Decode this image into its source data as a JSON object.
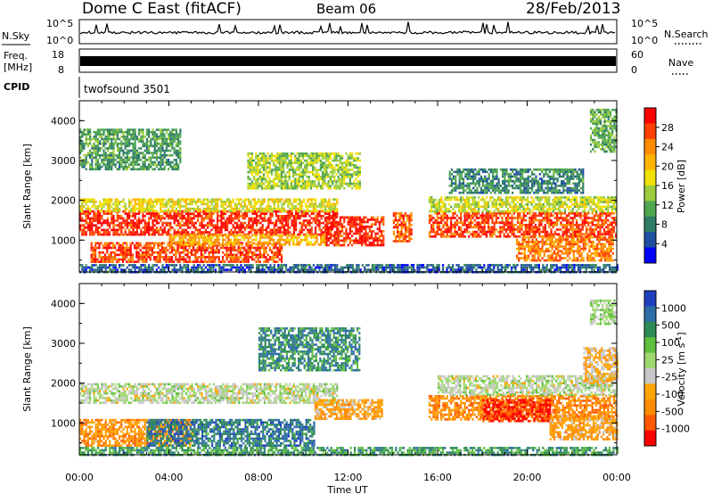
{
  "header": {
    "station": "Dome C East (fitACF)",
    "beam": "Beam 06",
    "date": "28/Feb/2013"
  },
  "noise_panel": {
    "left_label": "N.Sky",
    "right_label": "N.Search",
    "tick_top": "10^5",
    "tick_bottom": "10^0"
  },
  "freq_panel": {
    "left_label_top": "Freq.",
    "left_label_unit": "[MHz]",
    "left_tick_top": "18",
    "left_tick_bottom": "8",
    "right_label": "Nave",
    "right_tick_top": "60",
    "right_tick_bottom": "0"
  },
  "cpid_panel": {
    "label": "CPID",
    "value": "twofsound 3501"
  },
  "chart_data": [
    {
      "type": "heatmap",
      "name": "Power",
      "ylabel": "Slant Range [km]",
      "xlabel": "Time UT",
      "ylim": [
        200,
        4500
      ],
      "yticks": [
        "1000",
        "2000",
        "3000",
        "4000"
      ],
      "xticks": [
        "00:00",
        "04:00",
        "08:00",
        "12:00",
        "16:00",
        "20:00",
        "00:00"
      ],
      "colorbar": {
        "label": "Power [dB]",
        "ticks": [
          "28",
          "24",
          "20",
          "16",
          "12",
          "8",
          "4"
        ],
        "colors": [
          "#ff0000",
          "#ff4000",
          "#ff8c00",
          "#ffb400",
          "#f0e000",
          "#9ccc3c",
          "#4fa64f",
          "#2e7d64",
          "#1e4fa0",
          "#0000ff"
        ]
      },
      "regions": [
        {
          "t0": 0.0,
          "t1": 11.5,
          "r0": 1150,
          "r1": 1750,
          "level": 0.95
        },
        {
          "t0": 0.0,
          "t1": 11.5,
          "r0": 1750,
          "r1": 2050,
          "level": 0.55
        },
        {
          "t0": 0.5,
          "t1": 9.0,
          "r0": 450,
          "r1": 950,
          "level": 0.9
        },
        {
          "t0": 4.0,
          "t1": 11.0,
          "r0": 900,
          "r1": 1150,
          "level": 0.7
        },
        {
          "t0": 7.5,
          "t1": 12.5,
          "r0": 2300,
          "r1": 3200,
          "level": 0.45
        },
        {
          "t0": 11.0,
          "t1": 13.6,
          "r0": 900,
          "r1": 1600,
          "level": 0.95
        },
        {
          "t0": 14.0,
          "t1": 14.8,
          "r0": 1000,
          "r1": 1700,
          "level": 0.85
        },
        {
          "t0": 15.6,
          "t1": 24.0,
          "r0": 1100,
          "r1": 1700,
          "level": 0.9
        },
        {
          "t0": 15.6,
          "t1": 24.0,
          "r0": 1700,
          "r1": 2100,
          "level": 0.5
        },
        {
          "t0": 19.5,
          "t1": 23.8,
          "r0": 500,
          "r1": 1100,
          "level": 0.8
        },
        {
          "t0": 16.5,
          "t1": 22.5,
          "r0": 2200,
          "r1": 2800,
          "level": 0.25
        },
        {
          "t0": 0.0,
          "t1": 4.5,
          "r0": 2800,
          "r1": 3800,
          "level": 0.3
        },
        {
          "t0": 22.8,
          "t1": 24.0,
          "r0": 3200,
          "r1": 4300,
          "level": 0.35
        },
        {
          "t0": 0.0,
          "t1": 24.0,
          "r0": 220,
          "r1": 400,
          "level": 0.15
        }
      ]
    },
    {
      "type": "heatmap",
      "name": "Velocity",
      "ylabel": "Slant Range [km]",
      "xlabel": "Time UT",
      "ylim": [
        200,
        4500
      ],
      "yticks": [
        "1000",
        "2000",
        "3000",
        "4000"
      ],
      "xticks": [
        "00:00",
        "04:00",
        "08:00",
        "12:00",
        "16:00",
        "20:00",
        "00:00"
      ],
      "colorbar": {
        "label": "Velocity [m s^-1]",
        "ticks": [
          "1000",
          "500",
          "100",
          "25",
          "-25",
          "-100",
          "-500",
          "-1000"
        ],
        "colors": [
          "#1f3fbf",
          "#2e6ea6",
          "#2e8b57",
          "#5fbf3f",
          "#9fd86f",
          "#c8c8c8",
          "#ffa500",
          "#ff8c00",
          "#ff5a00",
          "#ff0000"
        ]
      },
      "regions": [
        {
          "t0": 0.0,
          "t1": 11.5,
          "r0": 1500,
          "r1": 2000,
          "level": 0.5
        },
        {
          "t0": 0.0,
          "t1": 5.0,
          "r0": 450,
          "r1": 1100,
          "level": 0.25
        },
        {
          "t0": 3.0,
          "t1": 10.5,
          "r0": 450,
          "r1": 1100,
          "level": 0.85
        },
        {
          "t0": 8.0,
          "t1": 12.5,
          "r0": 2300,
          "r1": 3400,
          "level": 0.8
        },
        {
          "t0": 10.5,
          "t1": 13.5,
          "r0": 1100,
          "r1": 1600,
          "level": 0.3
        },
        {
          "t0": 15.6,
          "t1": 24.0,
          "r0": 1100,
          "r1": 1700,
          "level": 0.22
        },
        {
          "t0": 18.0,
          "t1": 21.0,
          "r0": 1050,
          "r1": 1600,
          "level": 0.02
        },
        {
          "t0": 21.0,
          "t1": 24.0,
          "r0": 600,
          "r1": 1200,
          "level": 0.3
        },
        {
          "t0": 16.0,
          "t1": 24.0,
          "r0": 1700,
          "r1": 2200,
          "level": 0.5
        },
        {
          "t0": 22.5,
          "t1": 24.0,
          "r0": 2000,
          "r1": 2900,
          "level": 0.35
        },
        {
          "t0": 22.8,
          "t1": 24.0,
          "r0": 3500,
          "r1": 4100,
          "level": 0.55
        },
        {
          "t0": 0.0,
          "t1": 24.0,
          "r0": 220,
          "r1": 400,
          "level": 0.75
        }
      ]
    }
  ]
}
